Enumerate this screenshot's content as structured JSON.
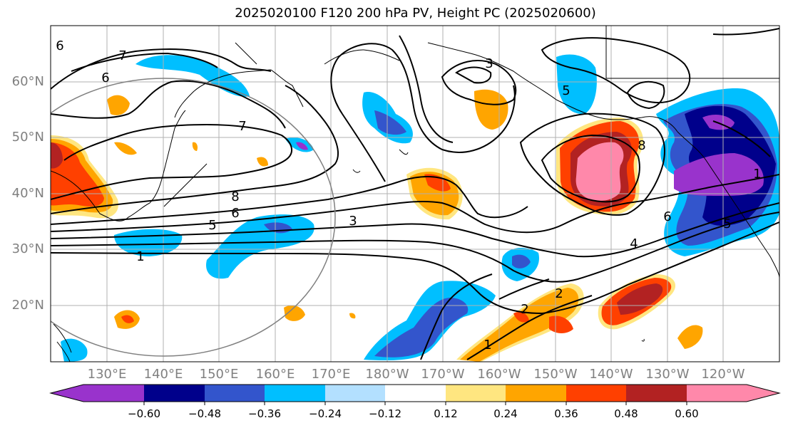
{
  "title": "2025020100 F120 200 hPa PV, Height PC (2025020600)",
  "latitude_labels": [
    "60°N",
    "50°N",
    "40°N",
    "30°N",
    "20°N"
  ],
  "longitude_labels": [
    "130°E",
    "140°E",
    "150°E",
    "160°E",
    "170°E",
    "180°W",
    "170°W",
    "160°W",
    "150°W",
    "140°W",
    "130°W",
    "120°W"
  ],
  "contour_labels": [
    "7",
    "6",
    "7",
    "8",
    "6",
    "5",
    "1",
    "3",
    "5",
    "4",
    "2",
    "2",
    "1",
    "6",
    "1",
    "6",
    "5",
    "3",
    "8"
  ],
  "colorbar": {
    "tick_labels": [
      "−0.60",
      "−0.48",
      "−0.36",
      "−0.24",
      "−0.12",
      "0.12",
      "0.24",
      "0.36",
      "0.48",
      "0.60"
    ],
    "colors": [
      "#9933cc",
      "#00008b",
      "#3355cc",
      "#00bfff",
      "#b3e0ff",
      "#ffffff",
      "#ffe680",
      "#ffa500",
      "#ff4000",
      "#b22222",
      "#ff88aa"
    ]
  },
  "field_colors": {
    "neg_weak": "#00bfff",
    "neg_mid": "#3355cc",
    "neg_strong": "#00008b",
    "neg_max": "#9933cc",
    "pos_weak": "#ffe680",
    "pos_mid": "#ffa500",
    "pos_strong": "#ff4000",
    "pos_dark": "#b22222",
    "pos_max": "#ff88aa",
    "grid": "#b0b0b0",
    "coast": "#000000",
    "circle": "#808080"
  }
}
